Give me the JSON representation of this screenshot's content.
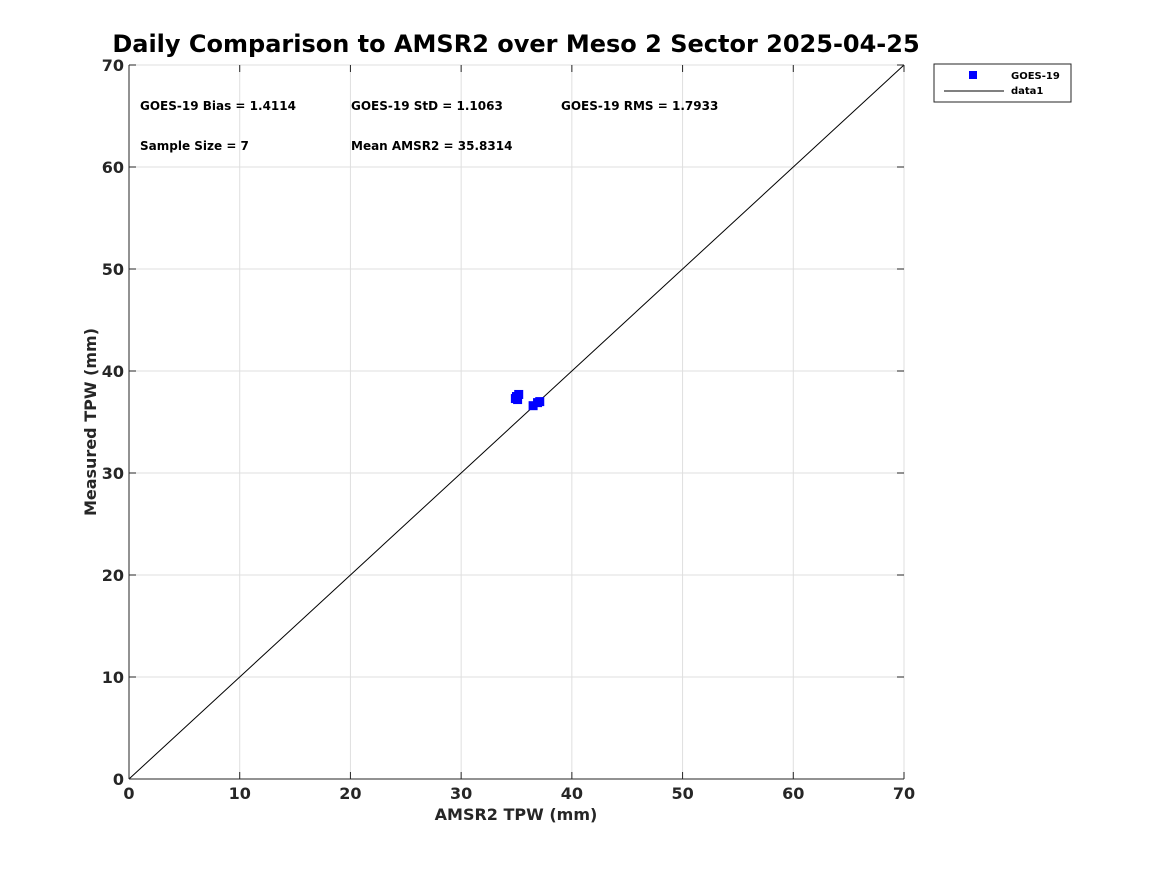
{
  "chart_data": {
    "type": "scatter",
    "title": "Daily Comparison to AMSR2 over Meso 2 Sector 2025-04-25",
    "xlabel": "AMSR2 TPW (mm)",
    "ylabel": "Measured TPW (mm)",
    "xlim": [
      0,
      70
    ],
    "ylim": [
      0,
      70
    ],
    "xticks": [
      "0",
      "10",
      "20",
      "30",
      "40",
      "50",
      "60",
      "70"
    ],
    "yticks": [
      "0",
      "10",
      "20",
      "30",
      "40",
      "50",
      "60",
      "70"
    ],
    "grid": true,
    "legend_position": "outside-top-right",
    "series": [
      {
        "name": "GOES-19",
        "kind": "scatter",
        "marker": "square",
        "color": "#0000ff",
        "points": [
          [
            35.2,
            37.7
          ],
          [
            34.9,
            37.3
          ],
          [
            35.1,
            37.2
          ],
          [
            36.5,
            36.6
          ],
          [
            37.1,
            37.0
          ],
          [
            36.9,
            36.9
          ],
          [
            35.0,
            37.5
          ]
        ]
      },
      {
        "name": "data1",
        "kind": "line",
        "color": "#000000",
        "points": [
          [
            0,
            0
          ],
          [
            70,
            70
          ]
        ]
      }
    ],
    "annotations": [
      "GOES-19 Bias = 1.4114",
      "GOES-19 StD = 1.1063",
      "GOES-19 RMS = 1.7933",
      "Sample Size = 7",
      "Mean AMSR2 = 35.8314"
    ]
  }
}
